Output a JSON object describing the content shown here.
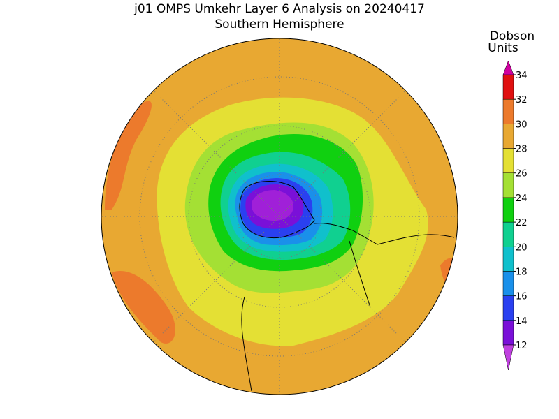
{
  "header": {
    "title": "j01 OMPS Umkehr Layer 6 Analysis on 20240417",
    "subtitle": "Southern Hemisphere"
  },
  "colorbar": {
    "label": [
      "Dobson",
      "Units"
    ],
    "ticks": [
      12,
      14,
      16,
      18,
      20,
      22,
      24,
      26,
      28,
      30,
      32,
      34
    ],
    "colors": [
      "#7a10d8",
      "#2a40f0",
      "#1a90ea",
      "#10c0cc",
      "#10d090",
      "#10d010",
      "#a4e034",
      "#e4e034",
      "#e8a832",
      "#ec7a2c",
      "#e01010"
    ],
    "under_color": "#c040e0",
    "over_color": "#d000a0"
  }
}
